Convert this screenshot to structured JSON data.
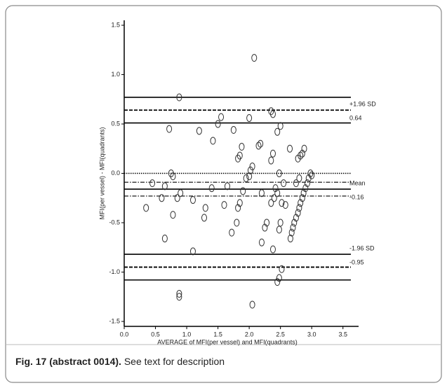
{
  "chart_data": {
    "type": "scatter",
    "x_label": "AVERAGE of MFI(per vessel) and MFI(quadrants)",
    "y_label": "MFI(per vessel) - MFI(quadrants)",
    "xlim": [
      0,
      3.75
    ],
    "ylim": [
      -1.55,
      1.55
    ],
    "xticks": [
      {
        "value": 0,
        "label": "0.0"
      },
      0.5,
      {
        "value": 1,
        "label": "1.0"
      },
      1.5,
      {
        "value": 2,
        "label": "2.0"
      },
      2.5,
      {
        "value": 3,
        "label": "3.0"
      },
      3.5
    ],
    "yticks": [
      1.5,
      {
        "value": 1,
        "label": "1.0"
      },
      0.5,
      {
        "value": 0,
        "label": "0.0"
      },
      -0.5,
      {
        "value": -1,
        "label": "-1.0"
      },
      -1.5
    ],
    "color": "#333333",
    "x": [
      0.88,
      2.08,
      0.72,
      1.2,
      1.42,
      1.5,
      1.55,
      1.75,
      1.88,
      1.85,
      1.82,
      2.0,
      2.18,
      2.15,
      2.35,
      2.38,
      2.45,
      2.5,
      2.38,
      2.35,
      2.48,
      2.65,
      2.85,
      2.82,
      2.88,
      2.78,
      0.75,
      0.78,
      0.45,
      0.65,
      0.85,
      0.9,
      0.35,
      0.6,
      0.78,
      1.1,
      1.3,
      1.28,
      1.4,
      1.65,
      1.6,
      1.72,
      1.8,
      1.82,
      1.85,
      1.9,
      1.95,
      2.0,
      2.05,
      2.02,
      2.2,
      2.28,
      2.25,
      2.35,
      2.4,
      2.45,
      2.42,
      2.55,
      2.52,
      2.58,
      2.5,
      2.48,
      2.38,
      2.2,
      2.05,
      0.65,
      1.1,
      0.88,
      0.88,
      2.45,
      2.48,
      2.52,
      2.66,
      2.68,
      2.7,
      2.72,
      2.75,
      2.78,
      2.8,
      2.82,
      2.85,
      2.87,
      2.9,
      2.93,
      2.95,
      2.98,
      3.0,
      2.75,
      2.8
    ],
    "values": [
      0.77,
      1.17,
      0.45,
      0.43,
      0.33,
      0.5,
      0.57,
      0.44,
      0.27,
      0.18,
      0.15,
      0.56,
      0.3,
      0.28,
      0.63,
      0.6,
      0.42,
      0.48,
      0.2,
      0.13,
      0.0,
      0.25,
      0.2,
      0.18,
      0.25,
      0.15,
      0.0,
      -0.03,
      -0.1,
      -0.13,
      -0.25,
      -0.2,
      -0.35,
      -0.25,
      -0.42,
      -0.27,
      -0.35,
      -0.45,
      -0.15,
      -0.13,
      -0.32,
      -0.6,
      -0.5,
      -0.35,
      -0.3,
      -0.18,
      -0.05,
      -0.03,
      0.07,
      0.03,
      -0.2,
      -0.5,
      -0.55,
      -0.3,
      -0.25,
      -0.2,
      -0.15,
      -0.1,
      -0.3,
      -0.32,
      -0.5,
      -0.57,
      -0.77,
      -0.7,
      -1.33,
      -0.66,
      -0.79,
      -1.22,
      -1.25,
      -1.1,
      -1.06,
      -0.97,
      -0.66,
      -0.6,
      -0.55,
      -0.5,
      -0.45,
      -0.4,
      -0.35,
      -0.3,
      -0.25,
      -0.2,
      -0.15,
      -0.1,
      -0.05,
      0.0,
      -0.02,
      -0.1,
      -0.05
    ],
    "lines": [
      {
        "value": 0.77,
        "style": "solid"
      },
      {
        "value": 0.64,
        "style": "dashed",
        "label_above": "+1.96 SD",
        "label_below": "0.64"
      },
      {
        "value": 0.51,
        "style": "solid"
      },
      {
        "value": 0,
        "style": "dotted"
      },
      {
        "value": -0.09,
        "style": "dashdot"
      },
      {
        "value": -0.16,
        "style": "solid",
        "label_above": "Mean",
        "label_below": "-0.16"
      },
      {
        "value": -0.23,
        "style": "dashdot"
      },
      {
        "value": -0.82,
        "style": "solid",
        "label_above": "-1.96 SD",
        "label_below": "-0.95"
      },
      {
        "value": -0.95,
        "style": "dashed"
      },
      {
        "value": -1.08,
        "style": "solid"
      }
    ]
  },
  "caption": {
    "label": "Fig. 17 (abstract 0014).",
    "text": "See text for description"
  }
}
